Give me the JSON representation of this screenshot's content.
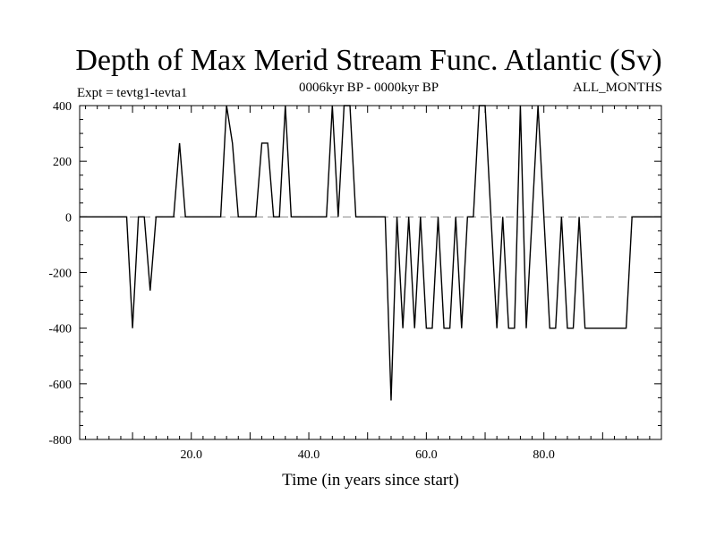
{
  "chart_data": {
    "type": "line",
    "title": "Depth of Max Merid Stream Func. Atlantic (Sv)",
    "subtitle_left": "Expt = tevtg1-tevta1",
    "subtitle_center": "0006kyr BP - 0000kyr BP",
    "subtitle_right": "ALL_MONTHS",
    "xlabel": "Time (in years since start)",
    "ylabel": "",
    "xlim": [
      1,
      100
    ],
    "ylim": [
      -800,
      400
    ],
    "xticks": [
      20,
      40,
      60,
      80
    ],
    "xtick_labels": [
      "20.0",
      "40.0",
      "60.0",
      "80.0"
    ],
    "yticks": [
      400,
      200,
      0,
      -200,
      -400,
      -600,
      -800
    ],
    "ytick_labels": [
      "400",
      "200",
      "0",
      "-200",
      "-400",
      "-600",
      "-800"
    ],
    "zero_line": {
      "value": 0,
      "style": "dashed",
      "color": "#888888"
    },
    "line_color": "#000000",
    "series": [
      {
        "name": "Depth of Max Merid Stream Func.",
        "x": [
          1,
          9,
          10,
          11,
          12,
          13,
          14,
          17,
          18,
          19,
          25,
          26,
          27,
          28,
          31,
          32,
          33,
          34,
          35,
          36,
          37,
          43,
          44,
          45,
          46,
          47,
          48,
          53,
          54,
          55,
          56,
          57,
          58,
          59,
          60,
          61,
          62,
          63,
          64,
          65,
          66,
          67,
          68,
          69,
          70,
          71,
          72,
          73,
          74,
          75,
          76,
          77,
          78,
          79,
          80,
          81,
          82,
          83,
          84,
          85,
          86,
          87,
          88,
          89,
          90,
          91,
          94,
          95,
          96,
          100
        ],
        "y": [
          0,
          0,
          -400,
          0,
          0,
          -265,
          0,
          0,
          265,
          0,
          0,
          400,
          265,
          0,
          0,
          265,
          265,
          0,
          0,
          400,
          0,
          0,
          400,
          0,
          400,
          400,
          0,
          0,
          -660,
          0,
          -400,
          0,
          -400,
          0,
          -400,
          -400,
          0,
          -400,
          -400,
          0,
          -400,
          0,
          0,
          400,
          400,
          0,
          -400,
          0,
          -400,
          -400,
          400,
          -400,
          0,
          400,
          0,
          -400,
          -400,
          0,
          -400,
          -400,
          0,
          -400,
          -400,
          -400,
          -400,
          -400,
          -400,
          0,
          0,
          0
        ]
      }
    ]
  }
}
